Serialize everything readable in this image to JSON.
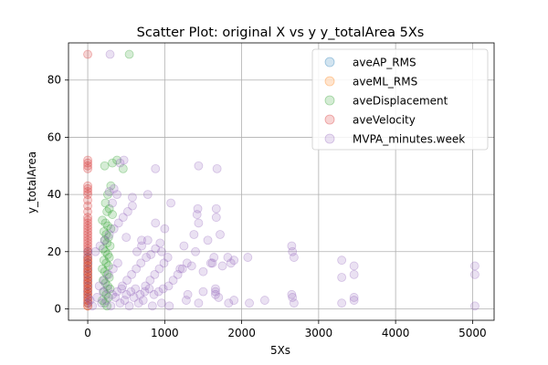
{
  "chart_data": {
    "type": "scatter",
    "title": "Scatter Plot: original X vs y y_totalArea 5Xs",
    "xlabel": "5Xs",
    "ylabel": "y_totalArea",
    "xlim": [
      -250,
      5280
    ],
    "ylim": [
      -4,
      93
    ],
    "xticks": [
      0,
      1000,
      2000,
      3000,
      4000,
      5000
    ],
    "yticks": [
      0,
      20,
      40,
      60,
      80
    ],
    "grid": true,
    "legend_position": "upper-right",
    "series": [
      {
        "name": "aveAP_RMS",
        "color": "#1f77b4",
        "points": [
          [
            1,
            2
          ],
          [
            2,
            4
          ],
          [
            1,
            6
          ],
          [
            3,
            8
          ],
          [
            2,
            10
          ],
          [
            1,
            12
          ],
          [
            2,
            14
          ],
          [
            3,
            16
          ],
          [
            1,
            18
          ],
          [
            2,
            20
          ]
        ]
      },
      {
        "name": "aveML_RMS",
        "color": "#ff7f0e",
        "points": [
          [
            1,
            1
          ],
          [
            2,
            3
          ],
          [
            1,
            5
          ],
          [
            2,
            7
          ],
          [
            1,
            9
          ],
          [
            3,
            11
          ],
          [
            2,
            13
          ],
          [
            1,
            15
          ],
          [
            2,
            17
          ]
        ]
      },
      {
        "name": "aveDisplacement",
        "color": "#2ca02c",
        "points": [
          [
            540,
            89
          ],
          [
            380,
            52
          ],
          [
            320,
            51
          ],
          [
            220,
            50
          ],
          [
            460,
            49
          ],
          [
            300,
            43
          ],
          [
            260,
            40
          ],
          [
            230,
            37
          ],
          [
            280,
            35
          ],
          [
            250,
            34
          ],
          [
            320,
            33
          ],
          [
            190,
            31
          ],
          [
            230,
            30
          ],
          [
            260,
            29
          ],
          [
            300,
            28
          ],
          [
            210,
            27
          ],
          [
            240,
            26
          ],
          [
            270,
            25
          ],
          [
            220,
            24
          ],
          [
            250,
            23
          ],
          [
            290,
            22
          ],
          [
            200,
            21
          ],
          [
            230,
            20
          ],
          [
            260,
            19
          ],
          [
            280,
            18
          ],
          [
            210,
            17
          ],
          [
            240,
            16
          ],
          [
            270,
            15
          ],
          [
            190,
            14
          ],
          [
            220,
            13
          ],
          [
            250,
            12
          ],
          [
            280,
            11
          ],
          [
            200,
            10
          ],
          [
            230,
            9
          ],
          [
            260,
            8
          ],
          [
            290,
            7
          ],
          [
            210,
            6
          ],
          [
            240,
            5
          ],
          [
            270,
            4
          ],
          [
            190,
            3
          ],
          [
            220,
            2
          ],
          [
            250,
            1
          ]
        ]
      },
      {
        "name": "aveVelocity",
        "color": "#d62728",
        "points": [
          [
            0,
            89
          ],
          [
            0,
            52
          ],
          [
            0,
            51
          ],
          [
            0,
            50
          ],
          [
            0,
            49
          ],
          [
            0,
            43
          ],
          [
            0,
            42
          ],
          [
            0,
            41
          ],
          [
            0,
            40
          ],
          [
            0,
            38
          ],
          [
            0,
            36
          ],
          [
            0,
            34
          ],
          [
            0,
            32
          ],
          [
            0,
            31
          ],
          [
            0,
            30
          ],
          [
            0,
            29
          ],
          [
            0,
            28
          ],
          [
            0,
            27
          ],
          [
            0,
            26
          ],
          [
            0,
            25
          ],
          [
            0,
            24
          ],
          [
            0,
            23
          ],
          [
            0,
            22
          ],
          [
            0,
            21
          ],
          [
            0,
            20
          ],
          [
            0,
            19
          ],
          [
            0,
            18
          ],
          [
            0,
            17
          ],
          [
            0,
            16
          ],
          [
            0,
            15
          ],
          [
            0,
            14
          ],
          [
            0,
            13
          ],
          [
            0,
            12
          ],
          [
            0,
            11
          ],
          [
            0,
            10
          ],
          [
            0,
            9
          ],
          [
            0,
            8
          ],
          [
            0,
            7
          ],
          [
            0,
            6
          ],
          [
            0,
            5
          ],
          [
            0,
            4
          ],
          [
            0,
            3
          ],
          [
            0,
            2
          ],
          [
            0,
            1
          ]
        ]
      },
      {
        "name": "MVPA_minutes.week",
        "color": "#9467bd",
        "points": [
          [
            290,
            89
          ],
          [
            470,
            52
          ],
          [
            420,
            51
          ],
          [
            1440,
            50
          ],
          [
            1680,
            49
          ],
          [
            880,
            49
          ],
          [
            780,
            40
          ],
          [
            1080,
            37
          ],
          [
            1430,
            35
          ],
          [
            1670,
            35
          ],
          [
            1420,
            33
          ],
          [
            1670,
            32
          ],
          [
            340,
            42
          ],
          [
            280,
            41
          ],
          [
            380,
            40
          ],
          [
            580,
            39
          ],
          [
            320,
            37
          ],
          [
            1440,
            30
          ],
          [
            880,
            30
          ],
          [
            1000,
            28
          ],
          [
            1380,
            26
          ],
          [
            1720,
            26
          ],
          [
            1560,
            24
          ],
          [
            500,
            25
          ],
          [
            700,
            24
          ],
          [
            780,
            24
          ],
          [
            2650,
            22
          ],
          [
            2660,
            20
          ],
          [
            2680,
            18
          ],
          [
            1250,
            22
          ],
          [
            1400,
            20
          ],
          [
            1640,
            18
          ],
          [
            1820,
            18
          ],
          [
            1040,
            18
          ],
          [
            960,
            20
          ],
          [
            1860,
            16
          ],
          [
            1620,
            16
          ],
          [
            2080,
            18
          ],
          [
            3300,
            17
          ],
          [
            3300,
            11
          ],
          [
            3460,
            15
          ],
          [
            3460,
            12
          ],
          [
            3460,
            4
          ],
          [
            3460,
            3
          ],
          [
            5030,
            15
          ],
          [
            5030,
            12
          ],
          [
            5030,
            1
          ],
          [
            2650,
            5
          ],
          [
            2660,
            4
          ],
          [
            2680,
            2
          ],
          [
            3300,
            2
          ],
          [
            1660,
            7
          ],
          [
            1660,
            6
          ],
          [
            1660,
            5
          ],
          [
            1830,
            2
          ],
          [
            1440,
            2
          ],
          [
            1280,
            3
          ],
          [
            1060,
            1
          ],
          [
            960,
            2
          ],
          [
            840,
            1
          ],
          [
            720,
            3
          ],
          [
            660,
            2
          ],
          [
            600,
            4
          ],
          [
            540,
            1
          ],
          [
            480,
            3
          ],
          [
            420,
            2
          ],
          [
            360,
            4
          ],
          [
            300,
            1
          ],
          [
            240,
            3
          ],
          [
            180,
            2
          ],
          [
            120,
            4
          ],
          [
            60,
            1
          ],
          [
            30,
            3
          ],
          [
            150,
            8
          ],
          [
            210,
            10
          ],
          [
            270,
            12
          ],
          [
            330,
            14
          ],
          [
            390,
            16
          ],
          [
            450,
            8
          ],
          [
            510,
            10
          ],
          [
            570,
            12
          ],
          [
            630,
            14
          ],
          [
            690,
            16
          ],
          [
            750,
            8
          ],
          [
            810,
            10
          ],
          [
            870,
            12
          ],
          [
            930,
            14
          ],
          [
            990,
            16
          ],
          [
            1050,
            8
          ],
          [
            1110,
            10
          ],
          [
            1170,
            12
          ],
          [
            1230,
            14
          ],
          [
            1290,
            16
          ],
          [
            100,
            20
          ],
          [
            160,
            22
          ],
          [
            220,
            24
          ],
          [
            280,
            26
          ],
          [
            340,
            28
          ],
          [
            400,
            30
          ],
          [
            460,
            32
          ],
          [
            520,
            34
          ],
          [
            580,
            36
          ],
          [
            640,
            20
          ],
          [
            700,
            22
          ],
          [
            760,
            18
          ],
          [
            820,
            19
          ],
          [
            880,
            21
          ],
          [
            940,
            23
          ],
          [
            200,
            6
          ],
          [
            260,
            7
          ],
          [
            320,
            5
          ],
          [
            380,
            6
          ],
          [
            440,
            7
          ],
          [
            500,
            5
          ],
          [
            560,
            6
          ],
          [
            620,
            7
          ],
          [
            680,
            5
          ],
          [
            740,
            6
          ],
          [
            800,
            7
          ],
          [
            860,
            5
          ],
          [
            920,
            6
          ],
          [
            980,
            7
          ],
          [
            1300,
            5
          ],
          [
            1500,
            6
          ],
          [
            1700,
            4
          ],
          [
            1900,
            3
          ],
          [
            2100,
            2
          ],
          [
            2300,
            3
          ],
          [
            1200,
            14
          ],
          [
            1350,
            15
          ],
          [
            1500,
            13
          ],
          [
            1600,
            16
          ],
          [
            1750,
            15
          ],
          [
            1900,
            17
          ]
        ]
      }
    ]
  }
}
